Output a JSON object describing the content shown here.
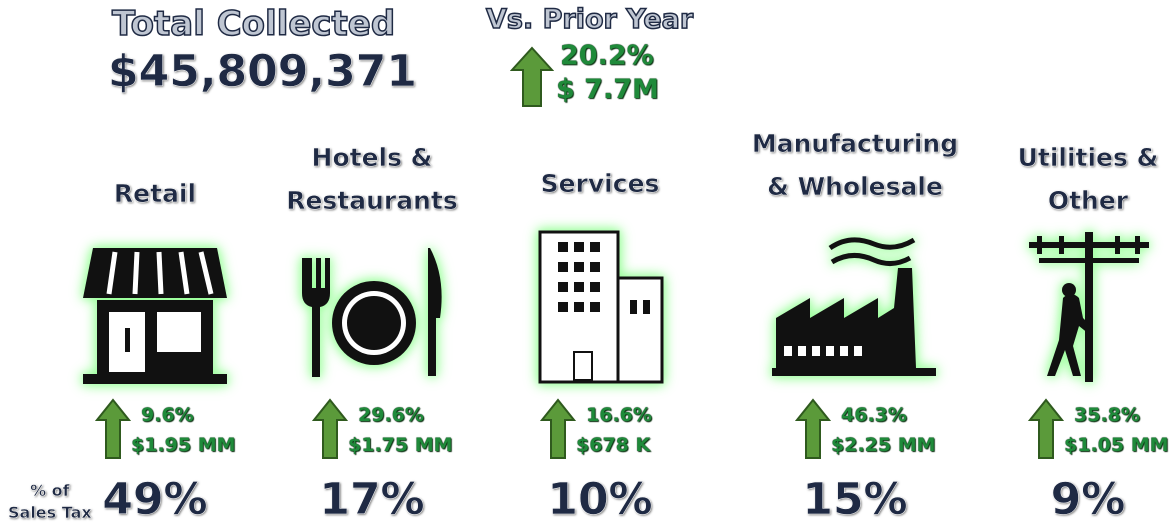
{
  "header": {
    "title": "Total Collected",
    "total": "$45,809,371",
    "comparison_label": "Vs. Prior Year",
    "change_pct": "20.2%",
    "change_amount": "$ 7.7M"
  },
  "share_label": [
    "% of",
    "Sales Tax"
  ],
  "categories": [
    {
      "name": [
        "Retail"
      ],
      "change_pct": "9.6%",
      "change_amount": "$1.95 MM",
      "share": "49%"
    },
    {
      "name": [
        "Hotels &",
        "Restaurants"
      ],
      "change_pct": "29.6%",
      "change_amount": "$1.75 MM",
      "share": "17%"
    },
    {
      "name": [
        "Services"
      ],
      "change_pct": "16.6%",
      "change_amount": "$678 K",
      "share": "10%"
    },
    {
      "name": [
        "Manufacturing",
        "& Wholesale"
      ],
      "change_pct": "46.3%",
      "change_amount": "$2.25 MM",
      "share": "15%"
    },
    {
      "name": [
        "Utilities &",
        "Other"
      ],
      "change_pct": "35.8%",
      "change_amount": "$1.05 MM",
      "share": "9%"
    }
  ]
}
